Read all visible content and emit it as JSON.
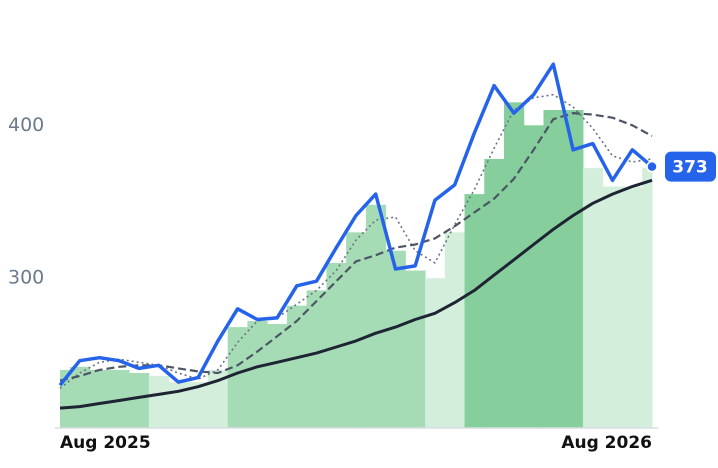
{
  "chart_data": {
    "type": "stock",
    "categories": [
      "Aug 2025",
      null,
      null,
      null,
      null,
      null,
      null,
      null,
      null,
      null,
      null,
      null,
      null,
      null,
      null,
      null,
      null,
      null,
      null,
      null,
      null,
      null,
      null,
      null,
      null,
      null,
      null,
      null,
      null,
      null,
      "Aug 2026"
    ],
    "ylim": [
      202,
      480
    ],
    "yticks": [
      300,
      400
    ],
    "area": {
      "values": [
        240,
        242,
        240,
        240,
        238,
        236,
        232,
        232,
        240,
        268,
        272,
        270,
        282,
        292,
        310,
        330,
        348,
        318,
        305,
        300,
        330,
        355,
        378,
        415,
        400,
        410,
        410,
        372,
        360,
        360,
        372
      ],
      "colors": [
        "#a6dcb5",
        "#a6dcb5",
        "#a6dcb5",
        "#a6dcb5",
        "#a6dcb5",
        "#d4eedc",
        "#d4eedc",
        "#d4eedc",
        "#d4eedc",
        "#a6dcb5",
        "#a6dcb5",
        "#a6dcb5",
        "#a6dcb5",
        "#a6dcb5",
        "#a6dcb5",
        "#a6dcb5",
        "#a6dcb5",
        "#a6dcb5",
        "#a6dcb5",
        "#d4eedc",
        "#d4eedc",
        "#86cf9c",
        "#86cf9c",
        "#86cf9c",
        "#86cf9c",
        "#86cf9c",
        "#86cf9c",
        "#d4eedc",
        "#d4eedc",
        "#d4eedc",
        "#d4eedc"
      ]
    },
    "series": [
      {
        "color": "#6b7280",
        "style": "dotted",
        "width": 1.6,
        "values": [
          228,
          238,
          245,
          247,
          245,
          243,
          238,
          234,
          240,
          258,
          272,
          274,
          283,
          292,
          305,
          325,
          338,
          340,
          318,
          310,
          335,
          358,
          385,
          410,
          418,
          420,
          412,
          398,
          380,
          376,
          378
        ]
      },
      {
        "color": "#4b5563",
        "style": "dashed",
        "width": 2.2,
        "values": [
          233,
          236,
          240,
          242,
          243,
          243,
          241,
          239,
          238,
          243,
          252,
          262,
          272,
          285,
          298,
          311,
          315,
          320,
          322,
          326,
          334,
          343,
          352,
          365,
          384,
          404,
          408,
          407,
          405,
          400,
          393
        ]
      },
      {
        "color": "#1e2433",
        "style": "solid",
        "width": 3,
        "values": [
          215,
          216,
          218,
          220,
          222,
          224,
          226,
          229,
          233,
          238,
          242,
          245,
          248,
          251,
          255,
          259,
          264,
          268,
          273,
          277,
          284,
          292,
          302,
          312,
          322,
          332,
          341,
          349,
          355,
          360,
          364
        ]
      },
      {
        "color": "#2563eb",
        "style": "solid",
        "width": 3.5,
        "last_label": true,
        "values": [
          230,
          246,
          248,
          246,
          241,
          243,
          232,
          235,
          259,
          280,
          273,
          274,
          295,
          298,
          320,
          341,
          355,
          306,
          308,
          351,
          361,
          395,
          426,
          408,
          420,
          440,
          384,
          388,
          364,
          384,
          373
        ]
      }
    ]
  }
}
